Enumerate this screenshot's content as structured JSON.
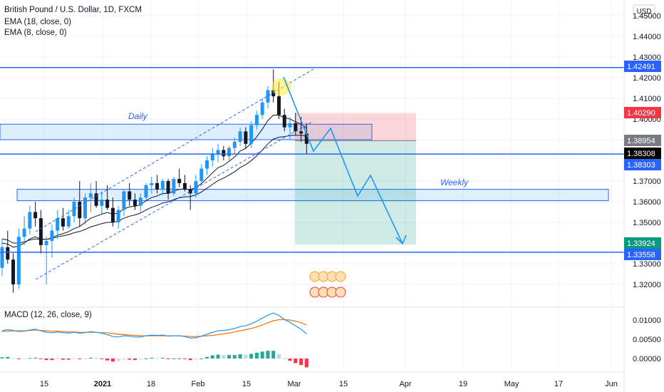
{
  "header": {
    "symbol_line": "British Pound / U.S. Dollar, 1D, FXCM",
    "ema_slow": "EMA (18, close, 0)",
    "ema_fast": "EMA (8, close, 0)",
    "currency": "USD"
  },
  "macd_label": "MACD (12, 26, close, 9)",
  "annotations": {
    "daily": "Daily",
    "weekly": "Weekly"
  },
  "price_axis": {
    "ticks": [
      "1.45000",
      "1.44000",
      "1.43000",
      "1.42000",
      "1.41000",
      "1.40000",
      "1.39000",
      "1.37000",
      "1.36000",
      "1.35000",
      "1.33000",
      "1.32000"
    ],
    "tags": [
      {
        "text": "1.42491",
        "color": "#2962ff"
      },
      {
        "text": "1.40290",
        "color": "#f23645"
      },
      {
        "text": "1.38954",
        "color": "#787b86"
      },
      {
        "text": "1.38308",
        "color": "#000000"
      },
      {
        "text": "1.38303",
        "color": "#2962ff"
      },
      {
        "text": "1.33924",
        "color": "#089981"
      },
      {
        "text": "1.33558",
        "color": "#2962ff"
      }
    ]
  },
  "macd_axis": {
    "ticks": [
      "0.01000",
      "0.00500",
      "0.00000"
    ]
  },
  "time_axis": {
    "ticks": [
      "15",
      "2021",
      "18",
      "Feb",
      "15",
      "Mar",
      "15",
      "Apr",
      "19",
      "May",
      "17",
      "Jun"
    ]
  },
  "chart_data": {
    "type": "candlestick",
    "title": "British Pound / U.S. Dollar, 1D, FXCM",
    "y_unit": "USD",
    "ylim": [
      1.315,
      1.455
    ],
    "x_start": "2020-12-09",
    "candles": [
      [
        1.328,
        1.342,
        1.324,
        1.338
      ],
      [
        1.338,
        1.346,
        1.33,
        1.332
      ],
      [
        1.332,
        1.335,
        1.316,
        1.32
      ],
      [
        1.32,
        1.347,
        1.318,
        1.343
      ],
      [
        1.343,
        1.353,
        1.339,
        1.347
      ],
      [
        1.347,
        1.358,
        1.344,
        1.355
      ],
      [
        1.355,
        1.36,
        1.348,
        1.352
      ],
      [
        1.352,
        1.356,
        1.335,
        1.339
      ],
      [
        1.339,
        1.343,
        1.32,
        1.341
      ],
      [
        1.341,
        1.349,
        1.333,
        1.346
      ],
      [
        1.346,
        1.356,
        1.342,
        1.352
      ],
      [
        1.352,
        1.357,
        1.346,
        1.348
      ],
      [
        1.348,
        1.356,
        1.347,
        1.353
      ],
      [
        1.353,
        1.362,
        1.35,
        1.36
      ],
      [
        1.36,
        1.37,
        1.348,
        1.352
      ],
      [
        1.352,
        1.364,
        1.349,
        1.362
      ],
      [
        1.362,
        1.369,
        1.355,
        1.364
      ],
      [
        1.364,
        1.37,
        1.357,
        1.358
      ],
      [
        1.358,
        1.365,
        1.354,
        1.361
      ],
      [
        1.361,
        1.368,
        1.356,
        1.357
      ],
      [
        1.357,
        1.362,
        1.348,
        1.35
      ],
      [
        1.35,
        1.358,
        1.347,
        1.356
      ],
      [
        1.356,
        1.366,
        1.353,
        1.365
      ],
      [
        1.365,
        1.369,
        1.358,
        1.361
      ],
      [
        1.361,
        1.364,
        1.356,
        1.358
      ],
      [
        1.358,
        1.364,
        1.355,
        1.362
      ],
      [
        1.362,
        1.369,
        1.36,
        1.368
      ],
      [
        1.368,
        1.372,
        1.364,
        1.369
      ],
      [
        1.369,
        1.373,
        1.364,
        1.366
      ],
      [
        1.366,
        1.371,
        1.363,
        1.37
      ],
      [
        1.37,
        1.371,
        1.361,
        1.364
      ],
      [
        1.364,
        1.372,
        1.363,
        1.371
      ],
      [
        1.371,
        1.376,
        1.367,
        1.369
      ],
      [
        1.369,
        1.373,
        1.365,
        1.366
      ],
      [
        1.366,
        1.368,
        1.356,
        1.364
      ],
      [
        1.364,
        1.373,
        1.362,
        1.37
      ],
      [
        1.37,
        1.378,
        1.369,
        1.376
      ],
      [
        1.376,
        1.382,
        1.373,
        1.38
      ],
      [
        1.38,
        1.386,
        1.377,
        1.383
      ],
      [
        1.383,
        1.388,
        1.379,
        1.385
      ],
      [
        1.385,
        1.387,
        1.38,
        1.382
      ],
      [
        1.382,
        1.387,
        1.38,
        1.386
      ],
      [
        1.386,
        1.391,
        1.383,
        1.389
      ],
      [
        1.389,
        1.396,
        1.387,
        1.394
      ],
      [
        1.394,
        1.396,
        1.386,
        1.388
      ],
      [
        1.388,
        1.399,
        1.386,
        1.397
      ],
      [
        1.397,
        1.404,
        1.395,
        1.402
      ],
      [
        1.402,
        1.41,
        1.4,
        1.408
      ],
      [
        1.408,
        1.416,
        1.405,
        1.414
      ],
      [
        1.414,
        1.424,
        1.408,
        1.411
      ],
      [
        1.411,
        1.418,
        1.4,
        1.402
      ],
      [
        1.402,
        1.405,
        1.394,
        1.396
      ],
      [
        1.396,
        1.401,
        1.39,
        1.398
      ],
      [
        1.398,
        1.403,
        1.392,
        1.394
      ],
      [
        1.394,
        1.401,
        1.389,
        1.393
      ],
      [
        1.393,
        1.398,
        1.383,
        1.388
      ]
    ],
    "ema_fast": [
      1.34,
      1.3395,
      1.338,
      1.3385,
      1.34,
      1.342,
      1.343,
      1.342,
      1.3418,
      1.3425,
      1.3438,
      1.3445,
      1.3455,
      1.347,
      1.348,
      1.35,
      1.352,
      1.353,
      1.354,
      1.3548,
      1.354,
      1.3545,
      1.3565,
      1.3575,
      1.3578,
      1.3585,
      1.3605,
      1.362,
      1.3628,
      1.364,
      1.364,
      1.3652,
      1.366,
      1.3661,
      1.3659,
      1.3668,
      1.3688,
      1.3713,
      1.374,
      1.3764,
      1.3776,
      1.3795,
      1.3816,
      1.3845,
      1.3858,
      1.3883,
      1.3914,
      1.3951,
      1.3993,
      1.4019,
      1.4019,
      1.4006,
      1.4,
      1.3987,
      1.3975,
      1.3954
    ],
    "ema_slow": [
      1.342,
      1.3415,
      1.34,
      1.34,
      1.3405,
      1.3415,
      1.342,
      1.3418,
      1.3418,
      1.3422,
      1.343,
      1.3435,
      1.344,
      1.345,
      1.3456,
      1.3466,
      1.3478,
      1.3486,
      1.3494,
      1.35,
      1.35,
      1.3506,
      1.352,
      1.353,
      1.3536,
      1.3545,
      1.356,
      1.3573,
      1.3582,
      1.3594,
      1.3599,
      1.361,
      1.3619,
      1.3623,
      1.3625,
      1.3633,
      1.3647,
      1.3665,
      1.3684,
      1.3702,
      1.3714,
      1.3729,
      1.3745,
      1.3765,
      1.3779,
      1.3799,
      1.3822,
      1.385,
      1.388,
      1.3903,
      1.3912,
      1.3915,
      1.392,
      1.3921,
      1.3922,
      1.3917
    ],
    "horizontal_levels": [
      1.42491,
      1.38308,
      1.33558
    ],
    "daily_zone": [
      1.391,
      1.395
    ],
    "weekly_zone": [
      1.362,
      1.366
    ],
    "position_tool": {
      "entry": 1.38954,
      "stop": 1.4029,
      "target": 1.33924
    },
    "macd_line": [
      0.0072,
      0.0075,
      0.0073,
      0.007,
      0.0071,
      0.0074,
      0.0076,
      0.0072,
      0.0068,
      0.0067,
      0.0069,
      0.0067,
      0.0066,
      0.0068,
      0.0066,
      0.0067,
      0.007,
      0.0068,
      0.0066,
      0.0062,
      0.0057,
      0.0056,
      0.0059,
      0.0058,
      0.0056,
      0.0056,
      0.0059,
      0.0061,
      0.006,
      0.0061,
      0.0058,
      0.0059,
      0.0059,
      0.0057,
      0.0053,
      0.0054,
      0.0058,
      0.0063,
      0.0068,
      0.0072,
      0.0073,
      0.0075,
      0.0078,
      0.0083,
      0.0085,
      0.009,
      0.0097,
      0.0105,
      0.0113,
      0.0118,
      0.0112,
      0.0101,
      0.0094,
      0.0085,
      0.0076,
      0.0064
    ],
    "signal_line": [
      0.007,
      0.0071,
      0.0072,
      0.0072,
      0.0072,
      0.0073,
      0.0074,
      0.0073,
      0.0072,
      0.0071,
      0.0071,
      0.007,
      0.0069,
      0.0069,
      0.0068,
      0.0068,
      0.0068,
      0.0068,
      0.0067,
      0.0067,
      0.0065,
      0.0063,
      0.0062,
      0.0061,
      0.006,
      0.0059,
      0.0059,
      0.0059,
      0.0059,
      0.0059,
      0.0059,
      0.0059,
      0.0059,
      0.0058,
      0.0057,
      0.0057,
      0.0058,
      0.0059,
      0.006,
      0.0062,
      0.0064,
      0.0066,
      0.0069,
      0.0072,
      0.0075,
      0.0078,
      0.0082,
      0.0087,
      0.0093,
      0.0098,
      0.0101,
      0.0101,
      0.01,
      0.0097,
      0.0093,
      0.0087
    ],
    "histogram": [
      0.0003,
      0.0004,
      0.0001,
      -0.0002,
      -0.0001,
      0.0001,
      0.0002,
      -0.0001,
      -0.0004,
      -0.0004,
      -0.0002,
      -0.0003,
      -0.0003,
      -0.0001,
      -0.0002,
      -0.0001,
      0.0002,
      0.0,
      -0.0001,
      -0.0005,
      -0.0008,
      -0.0007,
      -0.0003,
      -0.0003,
      -0.0004,
      -0.0003,
      0.0,
      0.0002,
      0.0001,
      0.0002,
      -0.0001,
      0.0,
      0.0,
      -0.0001,
      -0.0004,
      -0.0003,
      0.0,
      0.0004,
      0.0008,
      0.001,
      0.0009,
      0.0009,
      0.0009,
      0.0011,
      0.001,
      0.0012,
      0.0015,
      0.0018,
      0.002,
      0.002,
      0.0011,
      0.0,
      -0.0006,
      -0.0012,
      -0.0017,
      -0.0023
    ],
    "macd_ylim": [
      -0.0035,
      0.0135
    ]
  }
}
